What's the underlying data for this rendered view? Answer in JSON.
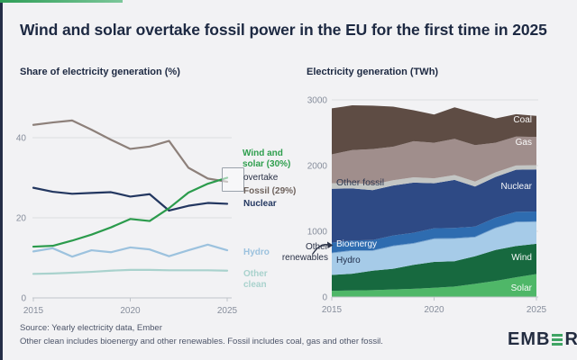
{
  "header": {
    "title": "Wind and solar overtake fossil power in the EU for the first time in 2025"
  },
  "colors": {
    "background": "#f2f2f4",
    "accent_navy": "#252e47",
    "accent_green": "#3fa463",
    "title_text": "#1d2942",
    "tick_text": "#878e9c",
    "gridline": "#dcdee1",
    "axis": "#c0c4ca"
  },
  "left_labels": {
    "wind_solar": "Wind and\nsolar (30%)",
    "overtake": "overtake",
    "fossil": "Fossil (29%)",
    "nuclear": "Nuclear",
    "hydro": "Hydro",
    "other_clean": "Other\nclean"
  },
  "right_labels": {
    "coal": "Coal",
    "gas": "Gas",
    "other_fossil": "Other fossil",
    "nuclear": "Nuclear",
    "bioenergy": "Bioenergy",
    "hydro": "Hydro",
    "wind": "Wind",
    "solar": "Solar",
    "other_renewables": "Other\nrenewables"
  },
  "footer": {
    "source": "Source: Yearly electricity data, Ember",
    "note": "Other clean includes bioenergy and other renewables. Fossil includes coal, gas and other fossil.",
    "logo_prefix": "EMB",
    "logo_suffix": "R"
  },
  "chart_data": [
    {
      "type": "line",
      "title": "Share of electricity generation (%)",
      "xlabel": "",
      "ylabel": "Share of electricity generation (%)",
      "x": [
        2015,
        2016,
        2017,
        2018,
        2019,
        2020,
        2021,
        2022,
        2023,
        2024,
        2025
      ],
      "xticks": [
        2015,
        2020,
        2025
      ],
      "yticks": [
        0,
        20,
        40
      ],
      "ylim": [
        0,
        47
      ],
      "grid": "horizontal",
      "series": [
        {
          "name": "Fossil",
          "color": "#8d807a",
          "values": [
            43.2,
            43.8,
            44.3,
            42.0,
            39.5,
            37.2,
            37.8,
            39.2,
            32.5,
            29.8,
            29.0
          ]
        },
        {
          "name": "Nuclear",
          "color": "#233760",
          "values": [
            27.5,
            26.5,
            26.0,
            26.2,
            26.4,
            25.3,
            25.9,
            21.8,
            23.0,
            23.7,
            23.5
          ]
        },
        {
          "name": "Hydro",
          "color": "#9cc2de",
          "values": [
            11.6,
            12.4,
            10.3,
            11.9,
            11.4,
            12.6,
            12.1,
            10.4,
            11.9,
            13.3,
            11.9
          ]
        },
        {
          "name": "Other clean",
          "color": "#a9d2cd",
          "values": [
            6.0,
            6.1,
            6.3,
            6.5,
            6.8,
            7.0,
            7.0,
            6.9,
            6.9,
            6.9,
            6.8
          ]
        },
        {
          "name": "Wind and solar",
          "color": "#2b9b4c",
          "values": [
            12.8,
            13.0,
            14.3,
            15.8,
            17.6,
            19.7,
            19.2,
            22.4,
            26.3,
            28.5,
            30.0
          ]
        }
      ],
      "annotation_values": {
        "wind_and_solar_2025_pct": 30,
        "fossil_2025_pct": 29
      }
    },
    {
      "type": "area",
      "title": "Electricity generation (TWh)",
      "xlabel": "",
      "ylabel": "Electricity generation (TWh)",
      "x": [
        2015,
        2016,
        2017,
        2018,
        2019,
        2020,
        2021,
        2022,
        2023,
        2024,
        2025
      ],
      "xticks": [
        2015,
        2020,
        2025
      ],
      "yticks": [
        0,
        1000,
        2000,
        3000
      ],
      "ylim": [
        0,
        3000
      ],
      "stack_order": "bottom-to-top",
      "series": [
        {
          "name": "Solar",
          "color": "#4fb768",
          "values": [
            95,
            100,
            105,
            115,
            125,
            140,
            160,
            200,
            245,
            300,
            350
          ]
        },
        {
          "name": "Wind",
          "color": "#17693f",
          "values": [
            240,
            255,
            295,
            315,
            365,
            395,
            385,
            420,
            470,
            475,
            460
          ]
        },
        {
          "name": "Hydro",
          "color": "#a6cbe8",
          "values": [
            330,
            345,
            300,
            340,
            320,
            345,
            340,
            285,
            330,
            360,
            330
          ]
        },
        {
          "name": "Other renewables",
          "color": "#6f9fce",
          "values": [
            12,
            12,
            12,
            12,
            12,
            12,
            12,
            12,
            12,
            12,
            12
          ]
        },
        {
          "name": "Bioenergy",
          "color": "#2e6cb0",
          "values": [
            150,
            150,
            155,
            155,
            155,
            155,
            155,
            155,
            150,
            150,
            150
          ]
        },
        {
          "name": "Nuclear",
          "color": "#2e4a85",
          "values": [
            820,
            790,
            760,
            760,
            765,
            685,
            730,
            610,
            620,
            640,
            640
          ]
        },
        {
          "name": "Other fossil",
          "color": "#c3c6c4",
          "values": [
            85,
            85,
            85,
            80,
            80,
            75,
            75,
            75,
            70,
            65,
            65
          ]
        },
        {
          "name": "Gas",
          "color": "#a08e8c",
          "values": [
            440,
            500,
            540,
            510,
            550,
            540,
            550,
            555,
            450,
            440,
            430
          ]
        },
        {
          "name": "Coal",
          "color": "#5e4c44",
          "values": [
            700,
            680,
            660,
            610,
            470,
            430,
            480,
            490,
            370,
            340,
            320
          ]
        }
      ]
    }
  ]
}
